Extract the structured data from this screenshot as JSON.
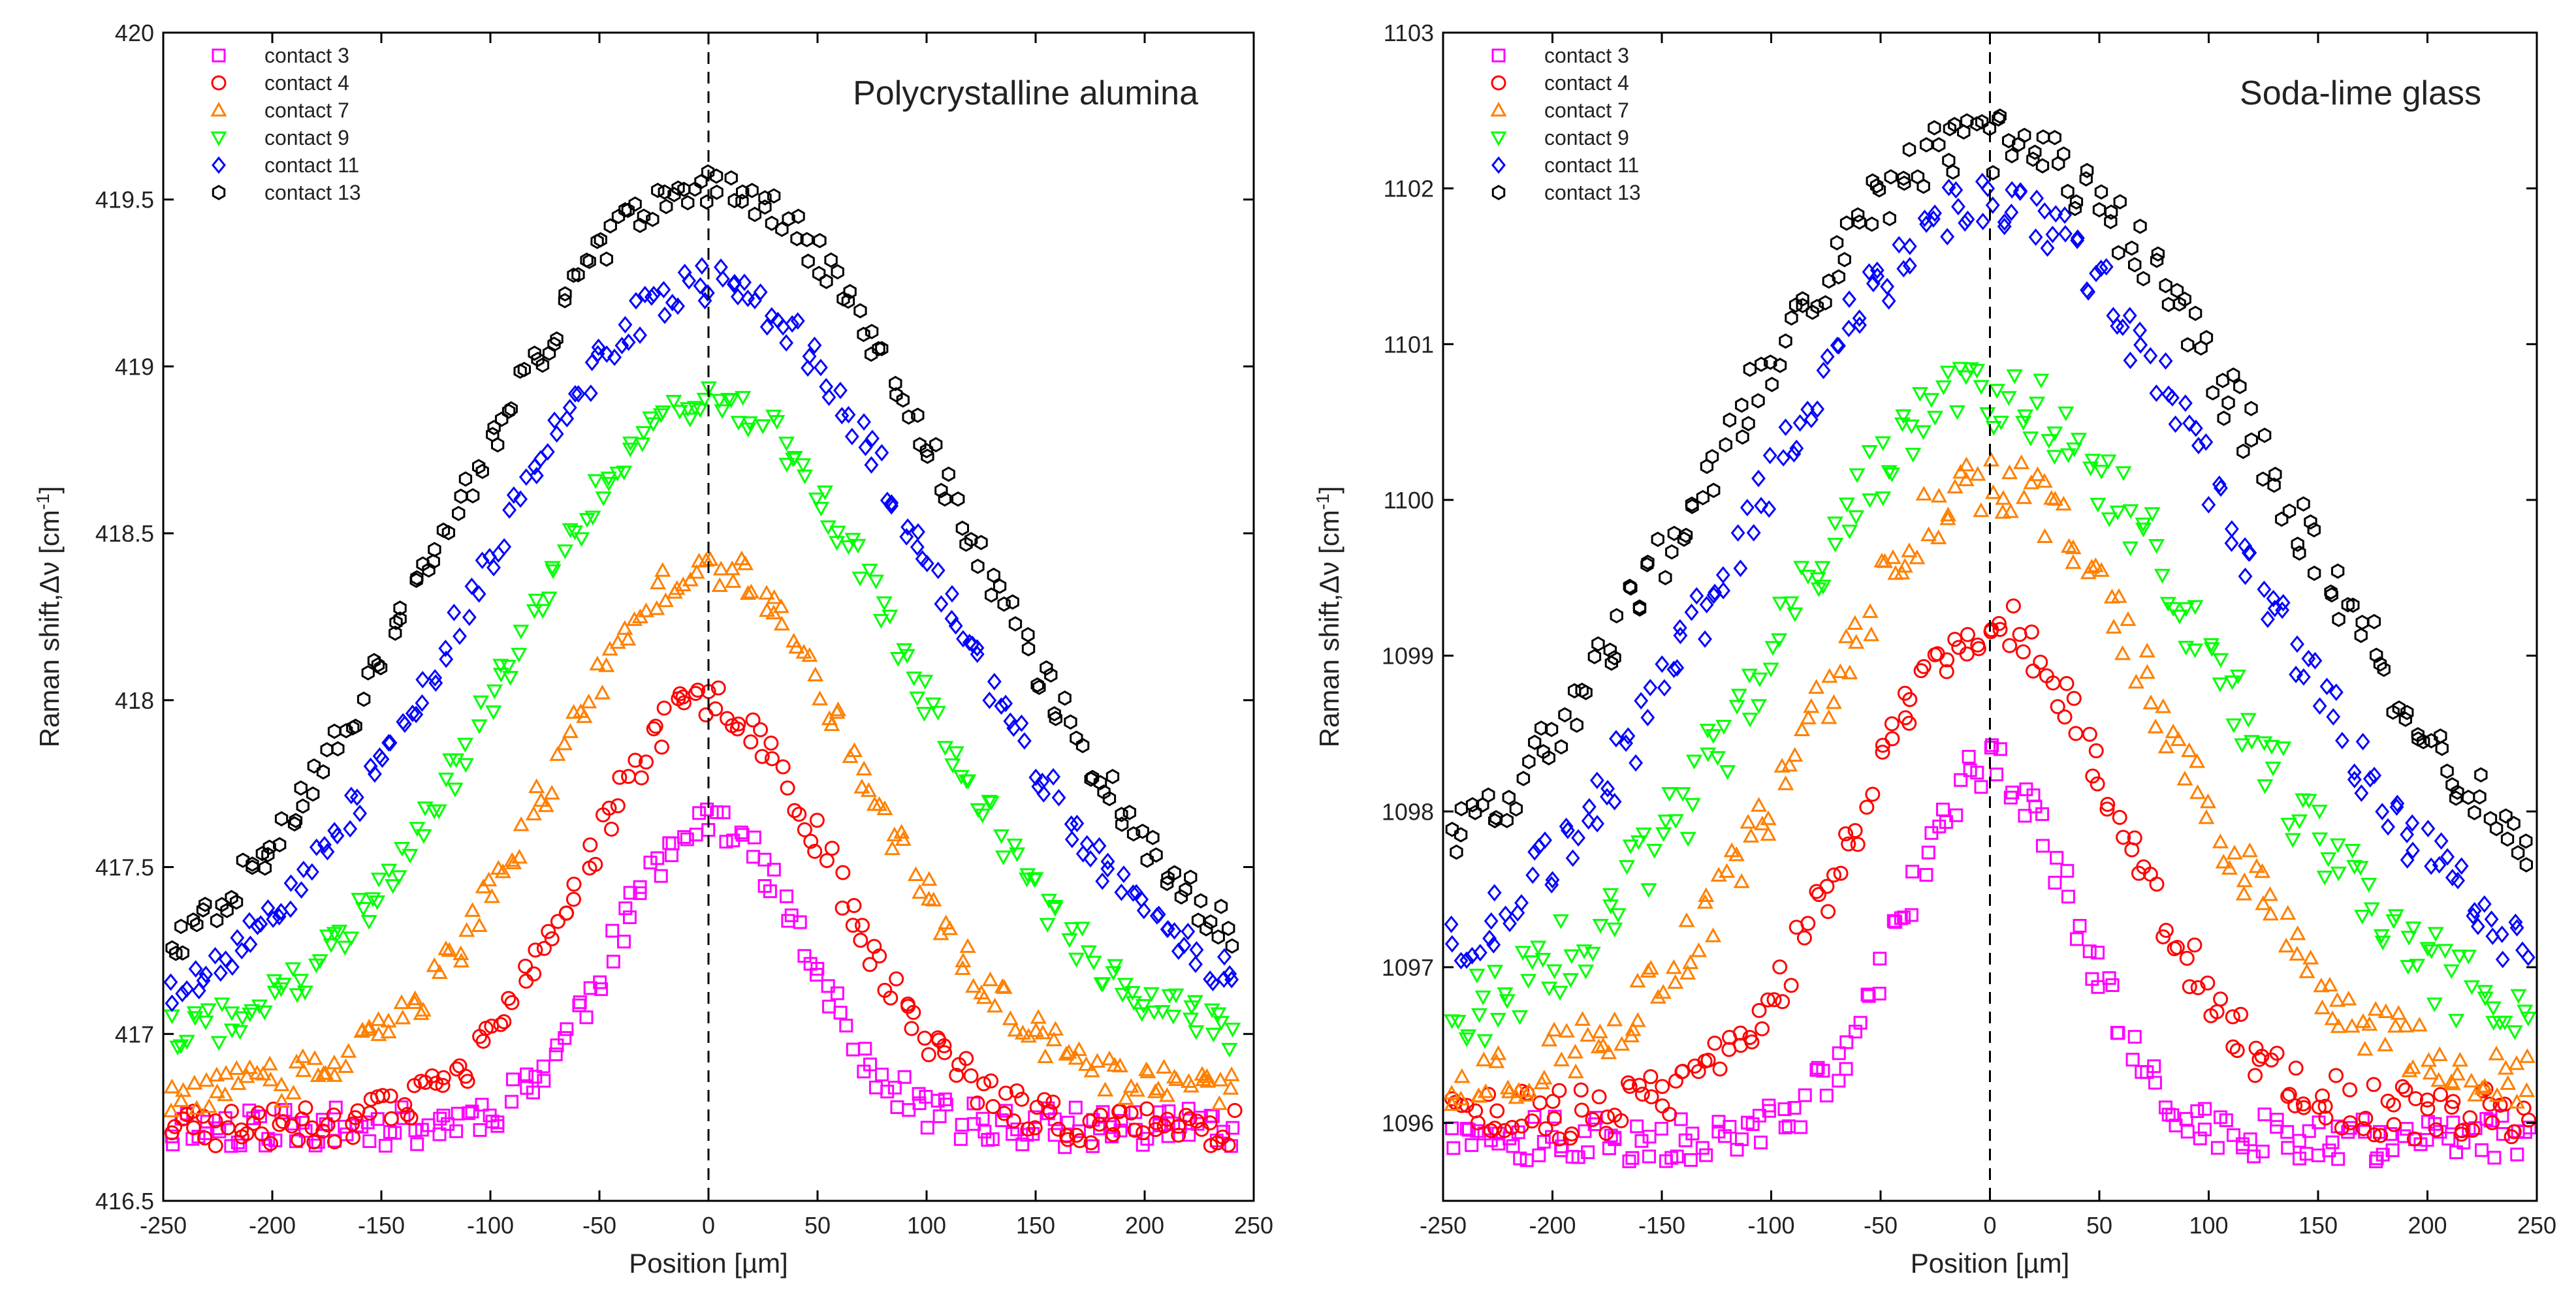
{
  "figure": {
    "panel_count": 2
  },
  "chart_data": [
    {
      "type": "scatter",
      "title": "Polycrystalline alumina",
      "xlabel": "Position [µm]",
      "ylabel_main": "Raman shift,Δν [cm",
      "ylabel_sup": "-1",
      "ylabel_end": "]",
      "xlim": [
        -250,
        250
      ],
      "ylim": [
        416.5,
        420
      ],
      "xticks": [
        -250,
        -200,
        -150,
        -100,
        -50,
        0,
        50,
        100,
        150,
        200,
        250
      ],
      "xtick_labels": [
        "-250",
        "-200",
        "-150",
        "-100",
        "-50",
        "0",
        "50",
        "100",
        "150",
        "200",
        "250"
      ],
      "yticks": [
        416.5,
        417,
        417.5,
        418,
        418.5,
        419,
        419.5,
        420
      ],
      "ytick_labels": [
        "416.5",
        "417",
        "417.5",
        "418",
        "418.5",
        "419",
        "419.5",
        "420"
      ],
      "reference_line_x": 0,
      "legend_position": "top-left",
      "series": [
        {
          "name": "contact 3",
          "marker": "square",
          "color": "#ff00ff",
          "x_range": [
            -245,
            240
          ],
          "x_step": 5,
          "baseline": 416.72,
          "peak": 417.65,
          "half_width": 70,
          "noise": 0.06,
          "seed": 11
        },
        {
          "name": "contact 4",
          "marker": "circle",
          "color": "#ff0000",
          "x_range": [
            -245,
            240
          ],
          "x_step": 5,
          "baseline": 416.72,
          "peak": 418.0,
          "half_width": 95,
          "noise": 0.06,
          "seed": 23
        },
        {
          "name": "contact 7",
          "marker": "triangle-up",
          "color": "#ff8000",
          "x_range": [
            -245,
            240
          ],
          "x_step": 5,
          "baseline": 416.82,
          "peak": 418.4,
          "half_width": 120,
          "noise": 0.06,
          "seed": 37
        },
        {
          "name": "contact 9",
          "marker": "triangle-down",
          "color": "#00ff00",
          "x_range": [
            -245,
            240
          ],
          "x_step": 5,
          "baseline": 416.95,
          "peak": 418.9,
          "half_width": 150,
          "noise": 0.06,
          "seed": 41
        },
        {
          "name": "contact 11",
          "marker": "diamond",
          "color": "#0000ff",
          "x_range": [
            -245,
            240
          ],
          "x_step": 5,
          "baseline": 417.0,
          "peak": 419.25,
          "half_width": 175,
          "noise": 0.06,
          "seed": 53
        },
        {
          "name": "contact 13",
          "marker": "hexagon",
          "color": "#000000",
          "x_range": [
            -245,
            240
          ],
          "x_step": 5,
          "baseline": 417.0,
          "peak": 419.55,
          "half_width": 195,
          "noise": 0.06,
          "seed": 67
        }
      ]
    },
    {
      "type": "scatter",
      "title": "Soda-lime glass",
      "xlabel": "Position [µm]",
      "ylabel_main": "Raman shift,Δν [cm",
      "ylabel_sup": "-1",
      "ylabel_end": "]",
      "xlim": [
        -250,
        250
      ],
      "ylim": [
        1095.5,
        1103
      ],
      "xticks": [
        -250,
        -200,
        -150,
        -100,
        -50,
        0,
        50,
        100,
        150,
        200,
        250
      ],
      "xtick_labels": [
        "-250",
        "-200",
        "-150",
        "-100",
        "-50",
        "0",
        "50",
        "100",
        "150",
        "200",
        "250"
      ],
      "yticks": [
        1096,
        1097,
        1098,
        1099,
        1100,
        1101,
        1102,
        1103
      ],
      "ytick_labels": [
        "1096",
        "1097",
        "1098",
        "1099",
        "1100",
        "1101",
        "1102",
        "1103"
      ],
      "reference_line_x": 0,
      "legend_position": "top-left",
      "series": [
        {
          "name": "contact 3",
          "marker": "square",
          "color": "#ff00ff",
          "x_range": [
            -245,
            245
          ],
          "x_step": 5,
          "baseline": 1095.9,
          "peak": 1098.3,
          "half_width": 65,
          "noise": 0.15,
          "seed": 71
        },
        {
          "name": "contact 4",
          "marker": "circle",
          "color": "#ff0000",
          "x_range": [
            -245,
            245
          ],
          "x_step": 5,
          "baseline": 1096.05,
          "peak": 1099.2,
          "half_width": 100,
          "noise": 0.17,
          "seed": 83
        },
        {
          "name": "contact 7",
          "marker": "triangle-up",
          "color": "#ff8000",
          "x_range": [
            -245,
            245
          ],
          "x_step": 5,
          "baseline": 1096.25,
          "peak": 1100.1,
          "half_width": 135,
          "noise": 0.2,
          "seed": 97
        },
        {
          "name": "contact 9",
          "marker": "triangle-down",
          "color": "#00ff00",
          "x_range": [
            -245,
            245
          ],
          "x_step": 5,
          "baseline": 1096.5,
          "peak": 1100.7,
          "half_width": 165,
          "noise": 0.25,
          "seed": 101
        },
        {
          "name": "contact 11",
          "marker": "diamond",
          "color": "#0000ff",
          "x_range": [
            -245,
            245
          ],
          "x_step": 5,
          "baseline": 1096.7,
          "peak": 1101.9,
          "half_width": 185,
          "noise": 0.2,
          "seed": 113
        },
        {
          "name": "contact 13",
          "marker": "hexagon",
          "color": "#000000",
          "x_range": [
            -245,
            245
          ],
          "x_step": 5,
          "baseline": 1096.9,
          "peak": 1102.3,
          "half_width": 215,
          "noise": 0.2,
          "seed": 127
        }
      ]
    }
  ]
}
